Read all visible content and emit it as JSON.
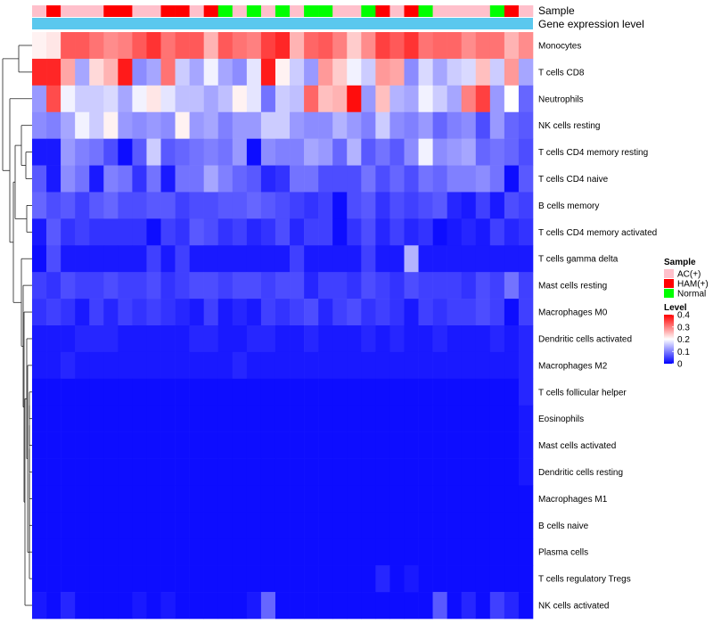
{
  "chart_data": {
    "type": "heatmap",
    "title": "",
    "track_labels": {
      "sample": "Sample",
      "expression": "Gene expression level"
    },
    "sample_groups": [
      "AC(+)",
      "HAM(+)",
      "AC(+)",
      "AC(+)",
      "AC(+)",
      "HAM(+)",
      "HAM(+)",
      "AC(+)",
      "AC(+)",
      "HAM(+)",
      "HAM(+)",
      "AC(+)",
      "HAM(+)",
      "Normal",
      "AC(+)",
      "Normal",
      "AC(+)",
      "Normal",
      "AC(+)",
      "Normal",
      "Normal",
      "AC(+)",
      "AC(+)",
      "Normal",
      "HAM(+)",
      "AC(+)",
      "HAM(+)",
      "Normal",
      "AC(+)",
      "AC(+)",
      "AC(+)",
      "AC(+)",
      "Normal",
      "HAM(+)",
      "AC(+)"
    ],
    "rows": [
      "Monocytes",
      "T cells CD8",
      "Neutrophils",
      "NK cells resting",
      "T cells CD4 memory resting",
      "T cells CD4 naive",
      "B cells memory",
      "T cells CD4 memory activated",
      "T cells gamma delta",
      "Mast cells resting",
      "Macrophages M0",
      "Dendritic cells activated",
      "Macrophages M2",
      "T cells follicular helper",
      "Eosinophils",
      "Mast cells activated",
      "Dendritic cells resting",
      "Macrophages M1",
      "B cells naive",
      "Plasma cells",
      "T cells regulatory  Tregs",
      "NK cells activated"
    ],
    "values": [
      [
        0.21,
        0.22,
        0.33,
        0.33,
        0.31,
        0.29,
        0.3,
        0.33,
        0.36,
        0.31,
        0.33,
        0.33,
        0.26,
        0.33,
        0.31,
        0.3,
        0.35,
        0.37,
        0.26,
        0.32,
        0.33,
        0.3,
        0.24,
        0.29,
        0.35,
        0.33,
        0.36,
        0.31,
        0.32,
        0.32,
        0.29,
        0.31,
        0.31,
        0.26,
        0.29
      ],
      [
        0.37,
        0.37,
        0.27,
        0.13,
        0.23,
        0.26,
        0.38,
        0.11,
        0.13,
        0.31,
        0.16,
        0.13,
        0.19,
        0.13,
        0.11,
        0.18,
        0.38,
        0.21,
        0.16,
        0.12,
        0.28,
        0.24,
        0.19,
        0.16,
        0.28,
        0.27,
        0.11,
        0.17,
        0.13,
        0.16,
        0.17,
        0.25,
        0.16,
        0.28,
        0.13
      ],
      [
        0.12,
        0.34,
        0.19,
        0.16,
        0.16,
        0.17,
        0.13,
        0.19,
        0.22,
        0.18,
        0.15,
        0.15,
        0.13,
        0.15,
        0.21,
        0.18,
        0.09,
        0.16,
        0.15,
        0.32,
        0.25,
        0.26,
        0.39,
        0.12,
        0.25,
        0.14,
        0.13,
        0.19,
        0.16,
        0.13,
        0.3,
        0.35,
        0.12,
        0.2,
        0.08
      ],
      [
        0.11,
        0.1,
        0.13,
        0.19,
        0.16,
        0.21,
        0.12,
        0.11,
        0.12,
        0.11,
        0.21,
        0.12,
        0.13,
        0.1,
        0.12,
        0.12,
        0.16,
        0.16,
        0.12,
        0.11,
        0.11,
        0.14,
        0.12,
        0.1,
        0.16,
        0.11,
        0.1,
        0.12,
        0.08,
        0.1,
        0.11,
        0.06,
        0.12,
        0.08,
        0.07
      ],
      [
        0.02,
        0.02,
        0.12,
        0.1,
        0.09,
        0.06,
        0.01,
        0.07,
        0.16,
        0.07,
        0.08,
        0.09,
        0.1,
        0.09,
        0.12,
        0.01,
        0.11,
        0.1,
        0.1,
        0.13,
        0.12,
        0.08,
        0.14,
        0.07,
        0.09,
        0.07,
        0.11,
        0.19,
        0.11,
        0.12,
        0.13,
        0.08,
        0.09,
        0.08,
        0.06
      ],
      [
        0.07,
        0.02,
        0.11,
        0.09,
        0.02,
        0.1,
        0.09,
        0.04,
        0.09,
        0.02,
        0.09,
        0.09,
        0.13,
        0.1,
        0.08,
        0.07,
        0.03,
        0.04,
        0.09,
        0.09,
        0.06,
        0.06,
        0.06,
        0.09,
        0.06,
        0.08,
        0.06,
        0.09,
        0.08,
        0.1,
        0.1,
        0.11,
        0.09,
        0.01,
        0.07
      ],
      [
        0.08,
        0.06,
        0.07,
        0.05,
        0.07,
        0.08,
        0.06,
        0.06,
        0.07,
        0.07,
        0.05,
        0.06,
        0.06,
        0.07,
        0.07,
        0.08,
        0.07,
        0.06,
        0.05,
        0.04,
        0.05,
        0.01,
        0.06,
        0.07,
        0.04,
        0.06,
        0.05,
        0.06,
        0.07,
        0.03,
        0.02,
        0.05,
        0.02,
        0.06,
        0.05
      ],
      [
        0.02,
        0.07,
        0.04,
        0.05,
        0.04,
        0.04,
        0.04,
        0.04,
        0.01,
        0.05,
        0.04,
        0.07,
        0.06,
        0.04,
        0.05,
        0.03,
        0.04,
        0.06,
        0.03,
        0.05,
        0.05,
        0.01,
        0.04,
        0.06,
        0.03,
        0.05,
        0.03,
        0.04,
        0.01,
        0.02,
        0.03,
        0.02,
        0.05,
        0.03,
        0.04
      ],
      [
        0.01,
        0.06,
        0.02,
        0.02,
        0.02,
        0.02,
        0.02,
        0.02,
        0.05,
        0.02,
        0.05,
        0.02,
        0.02,
        0.02,
        0.02,
        0.02,
        0.02,
        0.02,
        0.05,
        0.02,
        0.02,
        0.02,
        0.02,
        0.05,
        0.02,
        0.02,
        0.14,
        0.02,
        0.02,
        0.02,
        0.02,
        0.02,
        0.02,
        0.02,
        0.02
      ],
      [
        0.05,
        0.04,
        0.06,
        0.05,
        0.05,
        0.06,
        0.05,
        0.05,
        0.06,
        0.04,
        0.05,
        0.06,
        0.06,
        0.05,
        0.06,
        0.06,
        0.05,
        0.06,
        0.06,
        0.03,
        0.05,
        0.05,
        0.04,
        0.06,
        0.05,
        0.04,
        0.06,
        0.05,
        0.05,
        0.05,
        0.04,
        0.06,
        0.05,
        0.09,
        0.05
      ],
      [
        0.04,
        0.05,
        0.04,
        0.02,
        0.05,
        0.03,
        0.05,
        0.04,
        0.05,
        0.04,
        0.03,
        0.02,
        0.05,
        0.02,
        0.03,
        0.02,
        0.05,
        0.04,
        0.05,
        0.06,
        0.03,
        0.05,
        0.06,
        0.04,
        0.05,
        0.04,
        0.02,
        0.05,
        0.04,
        0.05,
        0.05,
        0.06,
        0.05,
        0.01,
        0.05
      ],
      [
        0.02,
        0.02,
        0.02,
        0.03,
        0.03,
        0.03,
        0.02,
        0.02,
        0.02,
        0.02,
        0.02,
        0.03,
        0.03,
        0.02,
        0.02,
        0.03,
        0.03,
        0.02,
        0.02,
        0.03,
        0.02,
        0.02,
        0.02,
        0.03,
        0.02,
        0.03,
        0.02,
        0.02,
        0.03,
        0.02,
        0.02,
        0.02,
        0.03,
        0.02,
        0.03
      ],
      [
        0.02,
        0.02,
        0.03,
        0.02,
        0.02,
        0.02,
        0.02,
        0.02,
        0.02,
        0.02,
        0.02,
        0.02,
        0.02,
        0.02,
        0.03,
        0.02,
        0.02,
        0.02,
        0.02,
        0.02,
        0.02,
        0.02,
        0.02,
        0.02,
        0.02,
        0.02,
        0.02,
        0.02,
        0.02,
        0.02,
        0.02,
        0.02,
        0.02,
        0.02,
        0.03
      ],
      [
        0.01,
        0.01,
        0.01,
        0.01,
        0.01,
        0.01,
        0.01,
        0.01,
        0.01,
        0.01,
        0.01,
        0.01,
        0.01,
        0.01,
        0.01,
        0.01,
        0.01,
        0.01,
        0.01,
        0.01,
        0.01,
        0.01,
        0.01,
        0.01,
        0.01,
        0.01,
        0.01,
        0.01,
        0.01,
        0.01,
        0.01,
        0.01,
        0.01,
        0.01,
        0.03
      ],
      [
        0.01,
        0.01,
        0.01,
        0.01,
        0.01,
        0.01,
        0.01,
        0.01,
        0.01,
        0.01,
        0.01,
        0.01,
        0.01,
        0.01,
        0.01,
        0.01,
        0.01,
        0.01,
        0.01,
        0.01,
        0.01,
        0.01,
        0.01,
        0.01,
        0.01,
        0.01,
        0.01,
        0.01,
        0.01,
        0.01,
        0.01,
        0.01,
        0.01,
        0.01,
        0.02
      ],
      [
        0.01,
        0.01,
        0.01,
        0.01,
        0.01,
        0.01,
        0.01,
        0.01,
        0.01,
        0.01,
        0.01,
        0.01,
        0.01,
        0.01,
        0.01,
        0.01,
        0.01,
        0.01,
        0.01,
        0.01,
        0.01,
        0.01,
        0.01,
        0.01,
        0.01,
        0.01,
        0.01,
        0.01,
        0.01,
        0.01,
        0.01,
        0.01,
        0.01,
        0.01,
        0.02
      ],
      [
        0.01,
        0.01,
        0.01,
        0.01,
        0.01,
        0.01,
        0.01,
        0.01,
        0.01,
        0.01,
        0.01,
        0.01,
        0.01,
        0.01,
        0.01,
        0.01,
        0.01,
        0.01,
        0.01,
        0.01,
        0.01,
        0.01,
        0.01,
        0.01,
        0.01,
        0.01,
        0.01,
        0.01,
        0.01,
        0.01,
        0.01,
        0.01,
        0.01,
        0.01,
        0.02
      ],
      [
        0.01,
        0.01,
        0.01,
        0.01,
        0.01,
        0.01,
        0.01,
        0.01,
        0.01,
        0.01,
        0.01,
        0.01,
        0.01,
        0.01,
        0.01,
        0.01,
        0.01,
        0.01,
        0.01,
        0.01,
        0.01,
        0.01,
        0.01,
        0.01,
        0.01,
        0.01,
        0.01,
        0.01,
        0.01,
        0.01,
        0.01,
        0.01,
        0.01,
        0.01,
        0.01
      ],
      [
        0.01,
        0.01,
        0.01,
        0.01,
        0.01,
        0.01,
        0.01,
        0.01,
        0.01,
        0.01,
        0.01,
        0.01,
        0.01,
        0.01,
        0.01,
        0.01,
        0.01,
        0.01,
        0.01,
        0.01,
        0.01,
        0.01,
        0.01,
        0.01,
        0.01,
        0.01,
        0.01,
        0.01,
        0.01,
        0.01,
        0.01,
        0.01,
        0.01,
        0.01,
        0.01
      ],
      [
        0.01,
        0.01,
        0.01,
        0.01,
        0.01,
        0.01,
        0.01,
        0.01,
        0.01,
        0.01,
        0.01,
        0.01,
        0.01,
        0.01,
        0.01,
        0.01,
        0.01,
        0.01,
        0.01,
        0.01,
        0.01,
        0.01,
        0.01,
        0.01,
        0.01,
        0.01,
        0.01,
        0.01,
        0.01,
        0.01,
        0.01,
        0.01,
        0.01,
        0.01,
        0.01
      ],
      [
        0.01,
        0.01,
        0.01,
        0.01,
        0.01,
        0.01,
        0.01,
        0.01,
        0.01,
        0.01,
        0.01,
        0.01,
        0.01,
        0.01,
        0.01,
        0.01,
        0.01,
        0.01,
        0.01,
        0.01,
        0.01,
        0.01,
        0.01,
        0.01,
        0.03,
        0.01,
        0.02,
        0.01,
        0.01,
        0.01,
        0.01,
        0.01,
        0.01,
        0.01,
        0.01
      ],
      [
        0.02,
        0.01,
        0.03,
        0.01,
        0.01,
        0.01,
        0.01,
        0.02,
        0.01,
        0.02,
        0.01,
        0.01,
        0.01,
        0.01,
        0.01,
        0.02,
        0.08,
        0.01,
        0.01,
        0.01,
        0.01,
        0.01,
        0.01,
        0.01,
        0.01,
        0.01,
        0.01,
        0.01,
        0.07,
        0.01,
        0.03,
        0.01,
        0.05,
        0.03,
        0.01
      ]
    ],
    "color_scale": {
      "min": 0,
      "max": 0.4,
      "low": "#0000ff",
      "mid_value": 0.2,
      "mid": "#ffffff",
      "high": "#ff0000"
    },
    "legend": {
      "sample_title": "Sample",
      "sample_entries": [
        {
          "label": "AC(+)",
          "color": "#ffc0cb"
        },
        {
          "label": "HAM(+)",
          "color": "#ff0000"
        },
        {
          "label": "Normal",
          "color": "#00ff00"
        }
      ],
      "level_title": "Level",
      "level_ticks": [
        "0.4",
        "0.3",
        "0.2",
        "0.1",
        "0"
      ]
    },
    "expression_track_color": "#5bc8ee",
    "dendrogram": "row clustering tree (left)"
  }
}
